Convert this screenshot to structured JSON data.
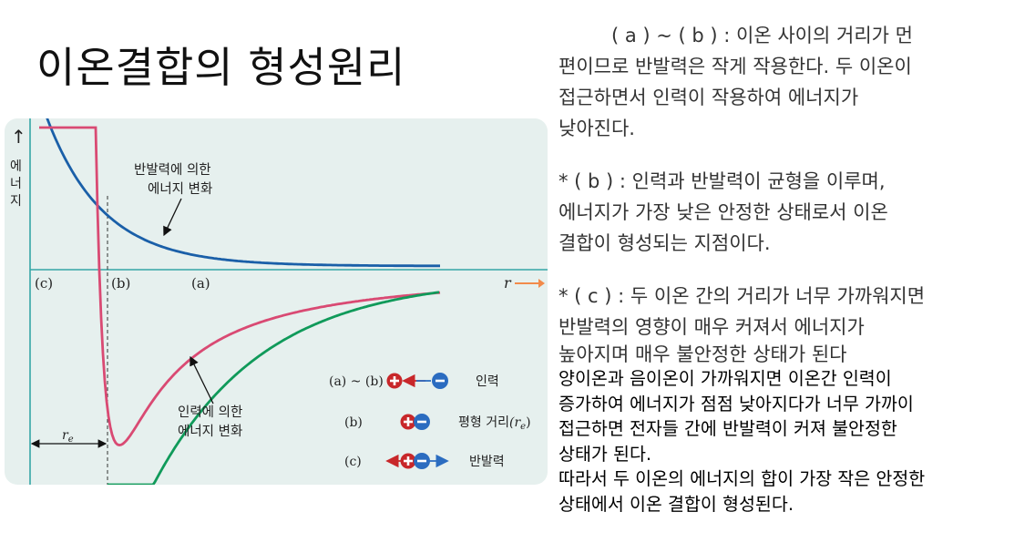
{
  "title": "이온결합의 형성원리",
  "figure": {
    "y_axis_arrow": "↑",
    "y_axis_label": [
      "에",
      "너",
      "지"
    ],
    "x_axis_label": "r",
    "positions": {
      "c": "(c)",
      "b": "(b)",
      "a": "(a)"
    },
    "re_label": "r",
    "re_subscript": "e",
    "repulsion_curve_label": [
      "반발력에 의한",
      "에너지 변화"
    ],
    "attraction_curve_label": [
      "인력에 의한",
      "에너지 변화"
    ],
    "legend": [
      {
        "key": "(a) ~ (b)",
        "label": "인력"
      },
      {
        "key": "(b)",
        "label": "평형 거리",
        "symbol": "(r",
        "symbol_sub": "e",
        "symbol_end": ")"
      },
      {
        "key": "(c)",
        "label": "반발력"
      }
    ],
    "colors": {
      "repulsion": "#1a5fa8",
      "total": "#d94a73",
      "attraction": "#109a5a",
      "axis": "#35a6a6",
      "arrow": "#f28a4a",
      "cation": "#c8272a",
      "anion": "#2b6cc0"
    }
  },
  "text": {
    "p1": [
      "( a ) ~ ( b ) : 이온 사이의 거리가 먼",
      "편이므로 반발력은 작게 작용한다. 두 이온이",
      "접근하면서 인력이 작용하여 에너지가",
      "낮아진다."
    ],
    "p2": [
      "* ( b ) : 인력과 반발력이 균형을 이루며,",
      "에너지가 가장 낮은 안정한 상태로서 이온",
      "결합이 형성되는 지점이다."
    ],
    "p3": [
      "* ( c ) : 두 이온 간의 거리가 너무 가까워지면",
      "반발력의 영향이 매우 커져서 에너지가",
      "높아지며 매우 불안정한 상태가 된다"
    ],
    "p4": [
      "양이온과 음이온이 가까워지면 이온간 인력이",
      "증가하여 에너지가 점점 낮아지다가 너무 가까이",
      "접근하면 전자들 간에 반발력이 커져 불안정한",
      "상태가 된다.",
      "따라서 두 이온의 에너지의 합이 가장 작은 안정한",
      "상태에서 이온 결합이 형성된다."
    ]
  }
}
